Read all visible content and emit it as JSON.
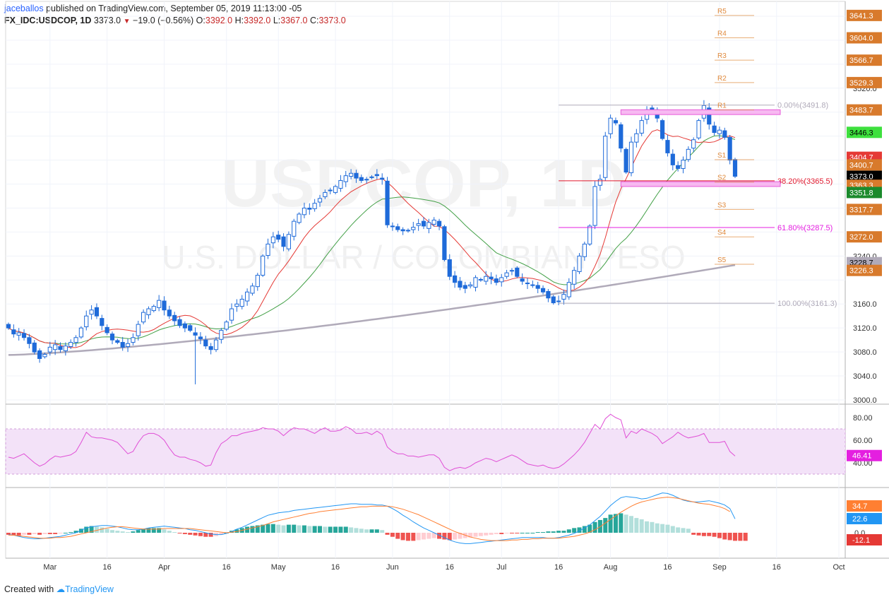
{
  "header": {
    "user": "jaceballos",
    "published": "published on TradingView.com, September 05, 2019 11:13:00 -05",
    "symbol": "FX_IDC:USDCOP, 1D",
    "last": "3373.0",
    "change_icon": "down-triangle-icon",
    "change": "−19.0 (−0.56%)",
    "o_label": "O:",
    "o": "3392.0",
    "h_label": "H:",
    "h": "3392.0",
    "l_label": "L:",
    "l": "3367.0",
    "c_label": "C:",
    "c": "3373.0"
  },
  "footer": {
    "created": "Created with",
    "brand": "TradingView"
  },
  "watermark": {
    "title": "USDCOP, 1D",
    "subtitle": "U.S. DOLLAR / COLOMBIAN PESO"
  },
  "colors": {
    "up": "#ffffff",
    "down": "#1e6ad9",
    "wick": "#1e6ad9",
    "ma_fast": "#e53935",
    "ma_mid": "#43a047",
    "ma_slow": "#b0aab9",
    "pivot": "#e08a3c",
    "fib_pink": "#e41fe0",
    "fib_red": "#e0182d",
    "rsi": "#e04fd6",
    "macd": "#2196f3",
    "signal": "#ff7f32",
    "hist_pos_strong": "#26a69a",
    "hist_pos_weak": "#b2dfdb",
    "hist_neg_strong": "#ef5350",
    "hist_neg_weak": "#ffcdd2"
  },
  "chart_data": [
    {
      "type": "candlestick",
      "title": "FX_IDC:USDCOP, 1D",
      "ylim": [
        3000,
        3660
      ],
      "y_ticks": [
        "3000.0",
        "3040.0",
        "3080.0",
        "3120.0",
        "3160.0",
        "3240.0",
        "3520.0"
      ],
      "x_ticks": [
        "Mar",
        "16",
        "Apr",
        "16",
        "May",
        "16",
        "Jun",
        "16",
        "Jul",
        "16",
        "Aug",
        "16",
        "Sep",
        "16",
        "Oct"
      ],
      "close": [
        3120,
        3110,
        3112,
        3104,
        3094,
        3080,
        3069,
        3076,
        3088,
        3092,
        3084,
        3090,
        3096,
        3104,
        3120,
        3140,
        3150,
        3140,
        3124,
        3112,
        3100,
        3096,
        3088,
        3094,
        3104,
        3126,
        3146,
        3152,
        3156,
        3166,
        3150,
        3140,
        3132,
        3124,
        3120,
        3116,
        3108,
        3102,
        3090,
        3084,
        3100,
        3116,
        3130,
        3152,
        3160,
        3168,
        3180,
        3190,
        3208,
        3240,
        3260,
        3272,
        3268,
        3256,
        3276,
        3298,
        3310,
        3320,
        3318,
        3328,
        3336,
        3346,
        3350,
        3356,
        3366,
        3374,
        3378,
        3370,
        3366,
        3368,
        3372,
        3374,
        3368,
        3292,
        3290,
        3284,
        3282,
        3282,
        3288,
        3294,
        3290,
        3296,
        3300,
        3290,
        3234,
        3206,
        3196,
        3188,
        3186,
        3192,
        3204,
        3200,
        3206,
        3202,
        3196,
        3204,
        3212,
        3216,
        3206,
        3198,
        3194,
        3192,
        3186,
        3180,
        3170,
        3162,
        3164,
        3176,
        3196,
        3216,
        3240,
        3260,
        3290,
        3356,
        3368,
        3440,
        3470,
        3462,
        3420,
        3380,
        3430,
        3444,
        3466,
        3484,
        3480,
        3470,
        3436,
        3412,
        3392,
        3386,
        3400,
        3418,
        3434,
        3466,
        3491,
        3460,
        3446,
        3450,
        3438,
        3400,
        3373
      ],
      "candle_ranges": {
        "first_bar": 1,
        "last_bar": 141,
        "bars_between_ticks_month": 22
      },
      "moving_averages": [
        {
          "name": "MA fast",
          "color_key": "ma_fast"
        },
        {
          "name": "MA mid",
          "color_key": "ma_mid"
        },
        {
          "name": "MA slow",
          "color_key": "ma_slow"
        }
      ],
      "price_labels": [
        {
          "value": "3641.3",
          "style": "pivot"
        },
        {
          "value": "3604.0",
          "style": "pivot"
        },
        {
          "value": "3566.7",
          "style": "pivot"
        },
        {
          "value": "3529.3",
          "style": "pivot"
        },
        {
          "value": "3483.7",
          "style": "pivot"
        },
        {
          "value": "3446.3",
          "style": "green-bright"
        },
        {
          "value": "3404.7",
          "style": "red"
        },
        {
          "value": "3400.7",
          "style": "pivot"
        },
        {
          "value": "3373.0",
          "style": "black"
        },
        {
          "value": "3363.3",
          "style": "pivot"
        },
        {
          "value": "3351.8",
          "style": "green"
        },
        {
          "value": "3317.7",
          "style": "pivot"
        },
        {
          "value": "3272.0",
          "style": "pivot"
        },
        {
          "value": "3228.7",
          "style": "grey"
        },
        {
          "value": "3226.3",
          "style": "pivot"
        }
      ],
      "pivots": [
        {
          "label": "R5",
          "value": 3641.3
        },
        {
          "label": "R4",
          "value": 3604.0
        },
        {
          "label": "R3",
          "value": 3566.7
        },
        {
          "label": "R2",
          "value": 3529.3
        },
        {
          "label": "R1",
          "value": 3483.7
        },
        {
          "label": "P",
          "value": 3446.3
        },
        {
          "label": "S1",
          "value": 3400.7
        },
        {
          "label": "S2",
          "value": 3363.3
        },
        {
          "label": "S3",
          "value": 3317.7
        },
        {
          "label": "S4",
          "value": 3272.0
        },
        {
          "label": "S5",
          "value": 3226.3
        }
      ],
      "fibonacci": [
        {
          "label": "0.00%(3491.8)",
          "value": 3491.8,
          "color_key": "ma_slow"
        },
        {
          "label": "38.20%(3365.5)",
          "value": 3365.5,
          "color_key": "fib_red"
        },
        {
          "label": "61.80%(3287.5)",
          "value": 3287.5,
          "color_key": "fib_pink"
        },
        {
          "label": "100.00%(3161.3)",
          "value": 3161.3,
          "color_key": "ma_slow"
        }
      ],
      "zones": [
        {
          "name": "resistance-zone",
          "from": 3476,
          "to": 3484
        },
        {
          "name": "support-zone",
          "from": 3356,
          "to": 3364
        }
      ]
    },
    {
      "type": "line",
      "title": "RSI",
      "ylim": [
        20,
        90
      ],
      "y_ticks": [
        "80.00",
        "60.00",
        "40.00"
      ],
      "band": [
        30,
        70
      ],
      "last_label": "46.41",
      "values": [
        45,
        44,
        46,
        48,
        44,
        40,
        37,
        39,
        43,
        46,
        45,
        46,
        47,
        50,
        58,
        67,
        63,
        62,
        62,
        61,
        60,
        58,
        53,
        48,
        50,
        58,
        64,
        66,
        66,
        64,
        60,
        53,
        47,
        45,
        45,
        43,
        42,
        40,
        37,
        38,
        49,
        57,
        60,
        64,
        64,
        66,
        67,
        68,
        69,
        71,
        70,
        70,
        68,
        64,
        68,
        71,
        70,
        70,
        68,
        66,
        69,
        71,
        68,
        68,
        69,
        72,
        70,
        66,
        66,
        67,
        65,
        68,
        65,
        54,
        50,
        48,
        48,
        46,
        46,
        45,
        46,
        47,
        47,
        44,
        36,
        33,
        35,
        36,
        35,
        37,
        40,
        42,
        44,
        43,
        41,
        43,
        45,
        47,
        45,
        42,
        39,
        38,
        37,
        38,
        36,
        35,
        36,
        39,
        43,
        47,
        52,
        58,
        66,
        74,
        70,
        79,
        83,
        80,
        78,
        62,
        68,
        66,
        70,
        68,
        66,
        63,
        57,
        60,
        63,
        67,
        64,
        62,
        63,
        64,
        66,
        58,
        58,
        58,
        59,
        50,
        46
      ]
    },
    {
      "type": "bar",
      "title": "MACD",
      "ylim": [
        -25,
        75
      ],
      "y_ticks": [
        "0.0"
      ],
      "labels": [
        "34.7",
        "22.6",
        "-12.1"
      ],
      "histogram": [
        -3,
        -4,
        -4,
        -3,
        -3,
        -2,
        -3,
        -2,
        -2,
        -2,
        -1,
        0,
        1,
        3,
        6,
        9,
        10,
        9,
        8,
        6,
        4,
        3,
        2,
        1,
        2,
        4,
        6,
        7,
        7,
        7,
        5,
        3,
        1,
        -1,
        -2,
        -3,
        -4,
        -5,
        -6,
        -6,
        -5,
        -3,
        0,
        3,
        5,
        7,
        9,
        10,
        11,
        12,
        13,
        13,
        12,
        11,
        12,
        12,
        11,
        11,
        10,
        10,
        10,
        9,
        9,
        9,
        9,
        9,
        8,
        7,
        6,
        5,
        5,
        5,
        4,
        -3,
        -6,
        -9,
        -11,
        -12,
        -12,
        -11,
        -10,
        -9,
        -8,
        -9,
        -10,
        -11,
        -10,
        -9,
        -8,
        -7,
        -6,
        -5,
        -4,
        -3,
        -2,
        -2,
        -1,
        -1,
        -1,
        0,
        0,
        0,
        1,
        1,
        2,
        2,
        3,
        3,
        5,
        7,
        8,
        10,
        12,
        16,
        19,
        22,
        27,
        28,
        29,
        27,
        25,
        22,
        20,
        17,
        16,
        14,
        13,
        12,
        10,
        8,
        7,
        6,
        -3,
        -4,
        -5,
        -5,
        -6,
        -8,
        -10,
        -11,
        -12,
        -12,
        -12
      ],
      "macd": [
        -3,
        -4,
        -6,
        -8,
        -9,
        -10,
        -10,
        -9,
        -8,
        -7,
        -6,
        -4,
        -2,
        0,
        4,
        8,
        10,
        11,
        12,
        12,
        11,
        10,
        8,
        6,
        5,
        5,
        6,
        8,
        9,
        10,
        11,
        10,
        9,
        8,
        7,
        5,
        4,
        2,
        0,
        -2,
        -3,
        -3,
        -1,
        2,
        6,
        9,
        13,
        17,
        21,
        25,
        29,
        31,
        33,
        34,
        35,
        37,
        38,
        39,
        40,
        41,
        42,
        43,
        44,
        45,
        46,
        47,
        48,
        48,
        47,
        47,
        47,
        46,
        46,
        44,
        40,
        35,
        29,
        24,
        18,
        13,
        8,
        4,
        0,
        -4,
        -8,
        -12,
        -15,
        -17,
        -18,
        -18,
        -17,
        -16,
        -15,
        -14,
        -13,
        -12,
        -11,
        -10,
        -9,
        -8,
        -8,
        -8,
        -8,
        -8,
        -9,
        -9,
        -8,
        -6,
        -4,
        -1,
        3,
        8,
        13,
        20,
        27,
        36,
        45,
        52,
        58,
        60,
        59,
        58,
        56,
        57,
        60,
        63,
        66,
        65,
        62,
        58,
        54,
        52,
        51,
        51,
        52,
        53,
        51,
        49,
        46,
        40,
        23
      ],
      "signal": [
        -4,
        -4,
        -5,
        -6,
        -7,
        -8,
        -9,
        -9,
        -9,
        -8,
        -8,
        -7,
        -6,
        -4,
        -2,
        0,
        2,
        4,
        6,
        8,
        9,
        10,
        10,
        9,
        8,
        7,
        6,
        6,
        6,
        6,
        7,
        7,
        7,
        7,
        7,
        7,
        6,
        5,
        4,
        3,
        2,
        1,
        0,
        1,
        2,
        4,
        6,
        8,
        10,
        12,
        15,
        18,
        20,
        22,
        24,
        26,
        28,
        30,
        32,
        33,
        35,
        36,
        37,
        38,
        39,
        40,
        41,
        42,
        43,
        43,
        44,
        44,
        44,
        44,
        43,
        41,
        39,
        36,
        33,
        30,
        26,
        22,
        18,
        14,
        10,
        6,
        2,
        -1,
        -4,
        -7,
        -9,
        -11,
        -12,
        -13,
        -13,
        -13,
        -13,
        -12,
        -12,
        -11,
        -11,
        -10,
        -10,
        -9,
        -9,
        -9,
        -9,
        -8,
        -7,
        -6,
        -4,
        -2,
        1,
        5,
        10,
        16,
        22,
        28,
        34,
        39,
        44,
        48,
        51,
        53,
        55,
        57,
        58,
        59,
        58,
        57,
        55,
        53,
        51,
        49,
        48,
        47,
        45,
        43,
        40,
        35
      ]
    }
  ]
}
